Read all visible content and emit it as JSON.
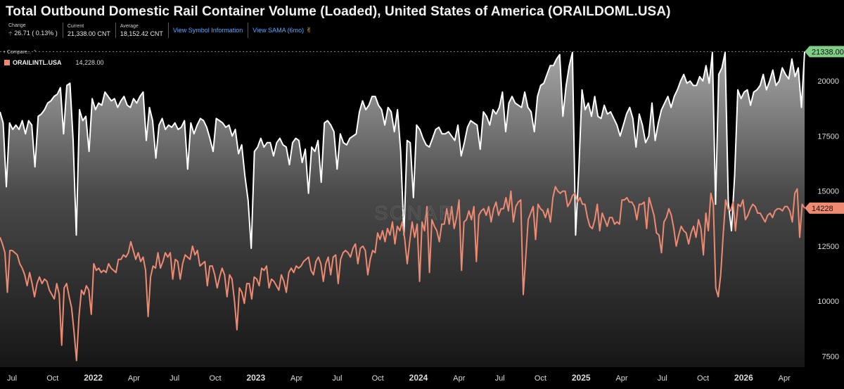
{
  "header": {
    "title": "Total Outbound Domestic Rail Container Volume (Loaded), United States of America (ORAILDOML.USA)",
    "stats": [
      {
        "label": "Change",
        "value": "26.71 ( 0.13% )"
      },
      {
        "label": "Current",
        "value": "21,338.00 CNT"
      },
      {
        "label": "Average",
        "value": "18,152.42 CNT"
      }
    ],
    "links": [
      "View Symbol Information",
      "View SAMA (6mo)"
    ],
    "compare_label": "Compare...",
    "legend": {
      "name": "ORAILINTL.USA",
      "value": "14,228.00"
    },
    "watermark": "SONAR"
  },
  "colors": {
    "primary": "#ffffff",
    "secondary": "#ef8a72",
    "current_badge": "#7fcf86",
    "change_up": "#7fd7a0",
    "link": "#59a7ff",
    "background": "#000000"
  },
  "chart_data": {
    "type": "area",
    "x_ticks": [
      "Jul",
      "Oct",
      "2022",
      "Apr",
      "Jul",
      "Oct",
      "2023",
      "Apr",
      "Jul",
      "Oct",
      "2024",
      "Apr",
      "Jul",
      "Oct",
      "2025",
      "Apr",
      "Jul",
      "Oct",
      "2026",
      "Apr"
    ],
    "y_ticks": [
      7500,
      10000,
      12500,
      15000,
      17500,
      20000
    ],
    "ylim": [
      7000,
      21700
    ],
    "grid": false,
    "series": [
      {
        "name": "ORAILDOML.USA",
        "current_label": "21338.00",
        "values": [
          18600,
          18100,
          15200,
          18100,
          17800,
          18000,
          17800,
          18200,
          17600,
          18200,
          18000,
          16100,
          18400,
          18500,
          18700,
          19000,
          19100,
          19300,
          19400,
          19700,
          17600,
          19800,
          19900,
          17300,
          13000,
          18700,
          18200,
          18400,
          16800,
          19200,
          18700,
          19000,
          18900,
          19500,
          19300,
          19100,
          19200,
          18800,
          19100,
          19300,
          18900,
          18800,
          19200,
          19000,
          19300,
          19500,
          17300,
          18800,
          18200,
          16500,
          18000,
          18300,
          17800,
          18000,
          17900,
          18100,
          17800,
          17900,
          18200,
          16000,
          18100,
          17600,
          18000,
          18300,
          18200,
          17900,
          17400,
          16800,
          18300,
          18200,
          18100,
          17900,
          18000,
          17500,
          17800,
          16700,
          17100,
          15700,
          14600,
          12400,
          16800,
          17000,
          17400,
          17000,
          17200,
          17200,
          16600,
          17200,
          17400,
          17100,
          17000,
          16200,
          17200,
          17400,
          17300,
          16300,
          16900,
          14900,
          17000,
          16800,
          17300,
          15400,
          18100,
          18200,
          18000,
          17700,
          16000,
          17600,
          17200,
          17100,
          17400,
          17500,
          17600,
          18600,
          19100,
          18700,
          18900,
          19300,
          19300,
          18900,
          18700,
          18000,
          18800,
          18600,
          17700,
          18700,
          16800,
          13000,
          17300,
          17200,
          14700,
          18000,
          17800,
          17400,
          17100,
          17000,
          17400,
          17800,
          17900,
          17600,
          17600,
          17700,
          17500,
          17300,
          18000,
          16600,
          17200,
          17900,
          18200,
          18100,
          18000,
          16900,
          18600,
          18400,
          18000,
          18700,
          18500,
          18800,
          19500,
          17700,
          19000,
          19300,
          19000,
          18900,
          18800,
          19500,
          18800,
          18600,
          17700,
          19300,
          19800,
          19900,
          20300,
          20700,
          20700,
          21000,
          21200,
          18400,
          19800,
          20700,
          21300,
          13000,
          16000,
          19600,
          18700,
          19000,
          18400,
          19300,
          18400,
          18300,
          18900,
          18500,
          18600,
          18300,
          18000,
          17500,
          18000,
          18500,
          18800,
          18300,
          17000,
          18500,
          18000,
          17200,
          17500,
          19000,
          17300,
          18100,
          18700,
          19000,
          19300,
          18800,
          19300,
          19600,
          20000,
          20300,
          19900,
          20000,
          19800,
          19800,
          20200,
          20000,
          20700,
          19900,
          21300,
          14400,
          20300,
          20600,
          21300,
          14500,
          13200,
          15700,
          19600,
          19200,
          19500,
          19600,
          18900,
          19500,
          19600,
          19800,
          20300,
          19600,
          20000,
          20500,
          19800,
          20000,
          20600,
          20300,
          20100,
          21000,
          20200,
          20600,
          18800,
          21338
        ]
      },
      {
        "name": "ORAILINTL.USA",
        "current_label": "14228",
        "values": [
          12900,
          12600,
          12200,
          10400,
          12300,
          12300,
          12200,
          12100,
          11700,
          11500,
          11200,
          10700,
          11300,
          10800,
          10200,
          10800,
          11100,
          10800,
          11000,
          10900,
          10500,
          10300,
          10100,
          10800,
          10300,
          8000,
          10600,
          10800,
          10200,
          9700,
          8600,
          7300,
          9300,
          10500,
          10300,
          10700,
          10500,
          9400,
          11700,
          11400,
          11500,
          11300,
          11400,
          11300,
          11700,
          11500,
          11400,
          11300,
          11900,
          11900,
          12100,
          12000,
          12200,
          12700,
          12300,
          11900,
          12200,
          11800,
          12000,
          11400,
          9300,
          11100,
          11600,
          11500,
          12200,
          11500,
          11800,
          12200,
          12000,
          12200,
          11000,
          11900,
          11800,
          11000,
          11700,
          12100,
          12000,
          11900,
          12500,
          12100,
          12300,
          11600,
          11700,
          11800,
          10700,
          11600,
          11600,
          11200,
          10600,
          11100,
          11500,
          11200,
          10200,
          11200,
          11000,
          10000,
          8700,
          10600,
          10400,
          9900,
          10800,
          10800,
          10100,
          11100,
          11000,
          10700,
          11500,
          11400,
          11600,
          10600,
          11000,
          10900,
          10700,
          10500,
          11200,
          10900,
          10400,
          11300,
          11500,
          11300,
          11600,
          11500,
          11600,
          11800,
          11900,
          12000,
          11400,
          11200,
          11800,
          12000,
          11700,
          10900,
          11700,
          12000,
          11200,
          12000,
          12100,
          10800,
          11900,
          12200,
          12300,
          12200,
          12000,
          12400,
          12600,
          11700,
          12400,
          12500,
          12300,
          11200,
          11900,
          12300,
          12200,
          13100,
          12800,
          13200,
          12700,
          13300,
          13000,
          13600,
          12600,
          13400,
          13200,
          13600,
          12800,
          11700,
          12700,
          13600,
          12900,
          13500,
          10900,
          13600,
          13200,
          14300,
          11300,
          13700,
          13400,
          13200,
          12700,
          13500,
          13500,
          14200,
          13500,
          14300,
          13300,
          13800,
          14600,
          11400,
          13600,
          13700,
          14100,
          13700,
          14300,
          11800,
          13900,
          14100,
          14200,
          13900,
          14300,
          13600,
          14200,
          14500,
          13900,
          14200,
          14200,
          14700,
          14100,
          15000,
          13600,
          14300,
          14500,
          14600,
          10300,
          12000,
          13700,
          14000,
          14300,
          12800,
          14400,
          14200,
          14100,
          13800,
          14200,
          13600,
          14700,
          15200,
          15000,
          14900,
          15000,
          15000,
          14300,
          14500,
          14800,
          14900,
          14500,
          14700,
          14400,
          14400,
          13800,
          13400,
          13300,
          13700,
          14400,
          13200,
          14000,
          13700,
          13400,
          13800,
          13800,
          13500,
          13600,
          13500,
          14600,
          14600,
          14700,
          14500,
          14500,
          14300,
          13700,
          14400,
          14400,
          14500,
          13300,
          14700,
          14300,
          13900,
          13100,
          13000,
          12200,
          13600,
          13800,
          14200,
          13900,
          13300,
          12500,
          13000,
          13400,
          13200,
          13100,
          12600,
          13100,
          13400,
          12900,
          13700,
          13300,
          12100,
          14000,
          13200,
          14900,
          14400,
          10600,
          10200,
          11200,
          13000,
          14600,
          14200,
          14100,
          14500,
          13200,
          14400,
          14300,
          14600,
          13700,
          13900,
          14200,
          14400,
          14300,
          14000,
          14000,
          13800,
          13600,
          13900,
          14000,
          13800,
          14100,
          14200,
          14200,
          14100,
          14300,
          14300,
          14100,
          13600,
          14900,
          15100,
          12900,
          14400,
          14228
        ]
      }
    ]
  }
}
